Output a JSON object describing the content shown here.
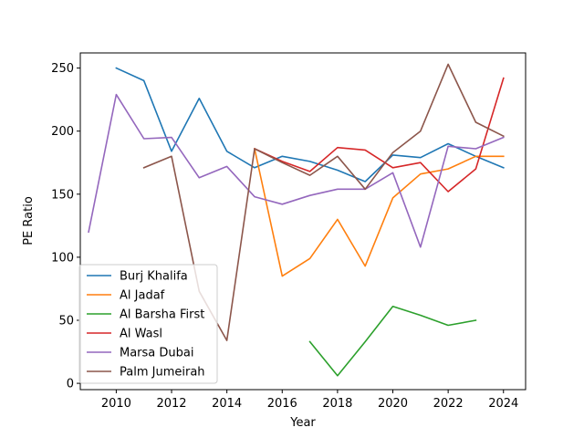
{
  "chart_data": {
    "type": "line",
    "title": "",
    "xlabel": "Year",
    "ylabel": "PE Ratio",
    "xlim": [
      2008.7,
      2024.8
    ],
    "ylim": [
      -5,
      262
    ],
    "xticks": [
      2010,
      2012,
      2014,
      2016,
      2018,
      2020,
      2022,
      2024
    ],
    "yticks": [
      0,
      50,
      100,
      150,
      200,
      250
    ],
    "grid": false,
    "legend_position": "lower-left",
    "x": [
      2009,
      2010,
      2011,
      2012,
      2013,
      2014,
      2015,
      2016,
      2017,
      2018,
      2019,
      2020,
      2021,
      2022,
      2023,
      2024
    ],
    "series": [
      {
        "name": "Burj Khalifa",
        "color": "#1f77b4",
        "values": [
          null,
          250,
          240,
          184,
          226,
          184,
          171,
          180,
          176,
          169,
          160,
          181,
          179,
          190,
          180,
          171
        ]
      },
      {
        "name": "Al Jadaf",
        "color": "#ff7f0e",
        "values": [
          null,
          null,
          null,
          null,
          null,
          null,
          186,
          85,
          99,
          130,
          93,
          147,
          166,
          170,
          180,
          180
        ]
      },
      {
        "name": "Al Barsha First",
        "color": "#2ca02c",
        "values": [
          null,
          null,
          null,
          null,
          null,
          null,
          null,
          null,
          33,
          6,
          33,
          61,
          54,
          46,
          50,
          null
        ]
      },
      {
        "name": "Al Wasl",
        "color": "#d62728",
        "values": [
          null,
          null,
          null,
          null,
          null,
          null,
          186,
          176,
          168,
          187,
          185,
          171,
          175,
          152,
          170,
          242
        ]
      },
      {
        "name": "Marsa Dubai",
        "color": "#9467bd",
        "values": [
          120,
          229,
          194,
          195,
          163,
          172,
          148,
          142,
          149,
          154,
          154,
          167,
          108,
          188,
          186,
          195
        ]
      },
      {
        "name": "Palm Jumeirah",
        "color": "#8c564b",
        "values": [
          null,
          null,
          171,
          180,
          73,
          34,
          186,
          175,
          165,
          180,
          154,
          183,
          200,
          253,
          207,
          196
        ]
      }
    ]
  }
}
